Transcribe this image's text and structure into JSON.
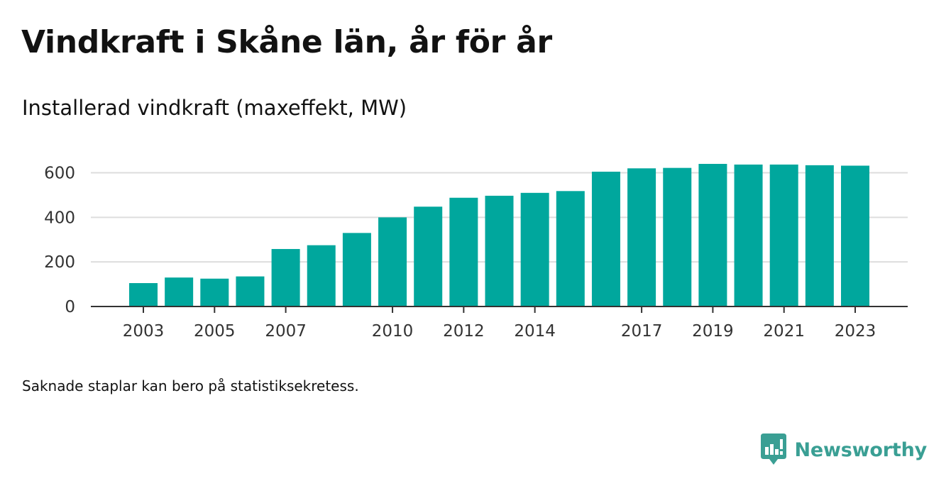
{
  "title": "Vindkraft i Skåne län, år för år",
  "subtitle": "Installerad vindkraft (maxeffekt, MW)",
  "note": "Saknade staplar kan bero på statistiksekretess.",
  "brand": {
    "name": "Newsworthy",
    "icon": "newsworthy-logo-icon",
    "color": "#3a9f94"
  },
  "chart_data": {
    "type": "bar",
    "title": "Installerad vindkraft (maxeffekt, MW)",
    "xlabel": "",
    "ylabel": "",
    "categories": [
      2003,
      2004,
      2005,
      2006,
      2007,
      2008,
      2009,
      2010,
      2011,
      2012,
      2013,
      2014,
      2015,
      2016,
      2017,
      2018,
      2019,
      2020,
      2021,
      2022,
      2023
    ],
    "values": [
      105,
      130,
      125,
      135,
      258,
      275,
      330,
      400,
      448,
      488,
      497,
      510,
      518,
      605,
      620,
      622,
      640,
      637,
      637,
      634,
      632
    ],
    "x_tick_labels": [
      "2003",
      "2005",
      "2007",
      "2010",
      "2012",
      "2014",
      "2017",
      "2019",
      "2021",
      "2023"
    ],
    "y_ticks": [
      0,
      200,
      400,
      600
    ],
    "y_tick_labels": [
      "0",
      "200",
      "400",
      "600"
    ],
    "ylim": [
      0,
      675
    ],
    "grid": true,
    "legend": "none",
    "bar_color": "#00a79d",
    "grid_color": "#dddddd",
    "axis_color": "#333333"
  }
}
